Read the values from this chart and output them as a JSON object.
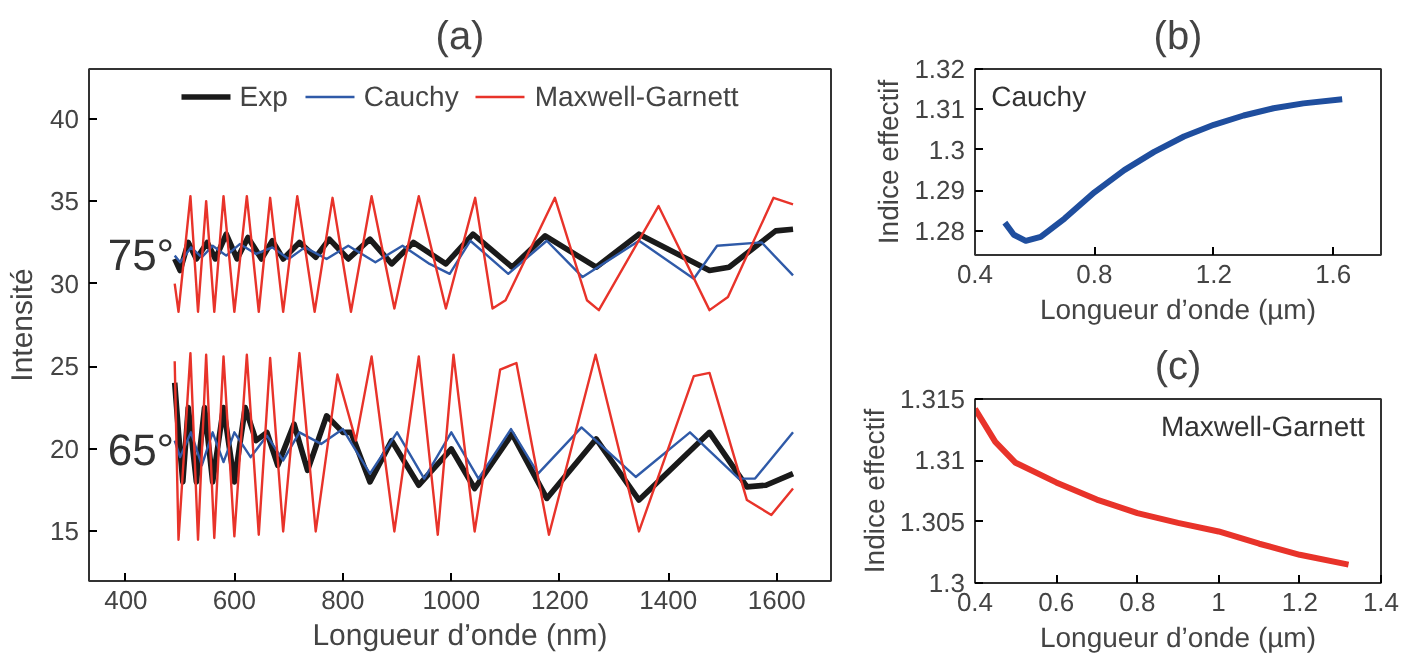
{
  "chart_data": [
    {
      "type": "line",
      "title": "(a)",
      "xlabel": "Longueur d’onde (nm)",
      "ylabel": "Intensité",
      "xlim": [
        332,
        1700
      ],
      "ylim": [
        12,
        43
      ],
      "xticks": [
        400,
        600,
        800,
        1000,
        1200,
        1400,
        1600
      ],
      "yticks": [
        15,
        20,
        25,
        30,
        35,
        40
      ],
      "grid": false,
      "legend": "top",
      "annotations": [
        "75°",
        "65°"
      ],
      "series": [
        {
          "name": "Exp",
          "color": "#1a1a1a",
          "x": [
            490,
            500,
            515,
            530,
            550,
            565,
            585,
            605,
            625,
            650,
            670,
            690,
            720,
            750,
            775,
            810,
            850,
            890,
            930,
            990,
            1040,
            1112,
            1173,
            1267,
            1346,
            1476,
            1512,
            1598,
            1630
          ],
          "values": [
            31.5,
            30.8,
            32.5,
            31.5,
            32.5,
            31.5,
            33.0,
            31.5,
            32.8,
            31.5,
            32.6,
            31.5,
            32.5,
            31.6,
            32.7,
            31.5,
            32.7,
            31.2,
            32.5,
            31.2,
            33.0,
            31.0,
            32.9,
            31.0,
            33.0,
            30.8,
            31.0,
            33.2,
            33.3
          ]
        },
        {
          "name": "Cauchy",
          "color": "#2f5aa8",
          "x": [
            490,
            500,
            520,
            540,
            560,
            585,
            610,
            640,
            670,
            700,
            730,
            770,
            810,
            860,
            910,
            960,
            997,
            1035,
            1105,
            1176,
            1242,
            1346,
            1447,
            1490,
            1572,
            1630
          ],
          "values": [
            31.7,
            31.3,
            32.2,
            31.6,
            32.3,
            31.7,
            32.4,
            31.8,
            32.2,
            31.5,
            32.2,
            31.5,
            32.3,
            31.3,
            32.3,
            31.2,
            30.6,
            32.6,
            30.6,
            32.6,
            30.4,
            32.6,
            30.3,
            32.3,
            32.5,
            30.5
          ]
        },
        {
          "name": "Maxwell-Garnett",
          "color": "#e8332a",
          "x": [
            490,
            497,
            519,
            533,
            548,
            563,
            580,
            600,
            623,
            645,
            666,
            690,
            716,
            748,
            781,
            815,
            853,
            895,
            940,
            990,
            1044,
            1076,
            1100,
            1191,
            1250,
            1272,
            1382,
            1476,
            1510,
            1594,
            1630
          ],
          "values": [
            30.0,
            28.3,
            35.3,
            28.3,
            35.0,
            28.3,
            35.3,
            28.3,
            35.3,
            28.3,
            35.2,
            28.3,
            35.3,
            28.3,
            35.2,
            28.3,
            35.3,
            28.5,
            35.3,
            28.5,
            35.2,
            28.5,
            29.0,
            35.2,
            29.0,
            28.4,
            34.7,
            28.4,
            29.2,
            35.2,
            34.8
          ]
        },
        {
          "color": "#1a1a1a",
          "x": [
            490,
            497,
            505,
            515,
            530,
            545,
            560,
            580,
            600,
            620,
            640,
            660,
            680,
            710,
            735,
            770,
            800,
            815,
            850,
            890,
            940,
            1000,
            1043,
            1112,
            1176,
            1267,
            1346,
            1476,
            1545,
            1580,
            1630
          ],
          "values": [
            24.0,
            21.0,
            18.0,
            22.5,
            18.0,
            22.5,
            18.0,
            22.5,
            18.0,
            22.5,
            20.5,
            21.0,
            19.0,
            21.5,
            18.7,
            22.0,
            21.0,
            21.0,
            18.0,
            20.5,
            17.8,
            20.0,
            17.6,
            20.9,
            17.0,
            20.6,
            16.9,
            21.0,
            17.7,
            17.8,
            18.5
          ]
        },
        {
          "color": "#2f5aa8",
          "x": [
            490,
            500,
            520,
            540,
            560,
            580,
            600,
            630,
            660,
            690,
            720,
            760,
            800,
            850,
            900,
            950,
            1000,
            1050,
            1110,
            1160,
            1240,
            1340,
            1440,
            1530,
            1560,
            1630
          ],
          "values": [
            20.5,
            19.5,
            21.0,
            19.0,
            21.0,
            19.2,
            21.0,
            19.5,
            20.8,
            19.3,
            21.0,
            20.3,
            21.2,
            18.5,
            21.0,
            18.2,
            21.0,
            18.2,
            21.2,
            18.5,
            21.3,
            18.3,
            21.0,
            18.2,
            18.2,
            21.0
          ]
        },
        {
          "color": "#e8332a",
          "x": [
            490,
            497,
            519,
            533,
            548,
            563,
            580,
            600,
            623,
            645,
            666,
            690,
            720,
            750,
            790,
            824,
            853,
            895,
            940,
            975,
            1004,
            1043,
            1090,
            1120,
            1180,
            1266,
            1346,
            1447,
            1476,
            1545,
            1590,
            1630
          ],
          "values": [
            25.3,
            14.5,
            25.8,
            14.5,
            25.7,
            14.6,
            25.6,
            14.7,
            25.7,
            14.8,
            25.5,
            15.0,
            25.8,
            15.0,
            24.5,
            20.5,
            25.6,
            15.0,
            25.6,
            14.8,
            25.7,
            15.0,
            24.8,
            25.2,
            14.8,
            25.7,
            15.0,
            24.4,
            24.6,
            16.9,
            16.0,
            17.6
          ]
        }
      ]
    },
    {
      "type": "line",
      "title": "(b)",
      "xlabel": "Longueur d’onde (µm)",
      "ylabel": "Indice effectif",
      "xlim": [
        0.4,
        1.76
      ],
      "ylim": [
        1.274,
        1.32
      ],
      "xticks": [
        0.4,
        0.8,
        1.2,
        1.6
      ],
      "yticks": [
        1.28,
        1.29,
        1.3,
        1.31,
        1.32
      ],
      "grid": false,
      "legend": "top left",
      "series": [
        {
          "name": "Cauchy",
          "color": "#1f4e9e",
          "x": [
            0.5,
            0.53,
            0.57,
            0.62,
            0.7,
            0.8,
            0.9,
            1.0,
            1.1,
            1.2,
            1.3,
            1.4,
            1.5,
            1.63
          ],
          "values": [
            1.282,
            1.279,
            1.2775,
            1.2785,
            1.283,
            1.2895,
            1.295,
            1.2995,
            1.3033,
            1.3062,
            1.3085,
            1.3103,
            1.3115,
            1.3125
          ]
        }
      ]
    },
    {
      "type": "line",
      "title": "(c)",
      "xlabel": "Longueur d’onde (µm)",
      "ylabel": "Indice effectif",
      "xlim": [
        0.4,
        1.4
      ],
      "ylim": [
        1.3,
        1.315
      ],
      "xticks": [
        0.4,
        0.6,
        0.8,
        1,
        1.2,
        1.4
      ],
      "yticks": [
        1.3,
        1.305,
        1.31,
        1.315
      ],
      "grid": false,
      "legend": "top right",
      "series": [
        {
          "name": "Maxwell-Garnett",
          "color": "#e8332a",
          "x": [
            0.4,
            0.45,
            0.5,
            0.6,
            0.7,
            0.8,
            0.9,
            1.0,
            1.1,
            1.2,
            1.32
          ],
          "values": [
            1.3142,
            1.3115,
            1.3098,
            1.3082,
            1.3068,
            1.3057,
            1.3049,
            1.3042,
            1.3032,
            1.3023,
            1.3015
          ]
        }
      ]
    }
  ]
}
